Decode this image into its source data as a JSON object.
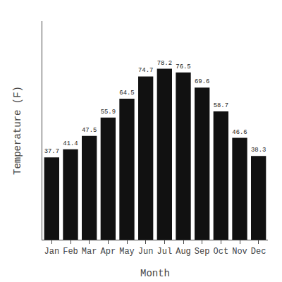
{
  "chart_data": {
    "type": "bar",
    "categories": [
      "Jan",
      "Feb",
      "Mar",
      "Apr",
      "May",
      "Jun",
      "Jul",
      "Aug",
      "Sep",
      "Oct",
      "Nov",
      "Dec"
    ],
    "values": [
      37.7,
      41.4,
      47.5,
      55.9,
      64.5,
      74.7,
      78.2,
      76.5,
      69.6,
      58.7,
      46.6,
      38.3
    ],
    "color": "#111111",
    "xlabel": "Month",
    "ylabel": "Temperature (F)",
    "ylim": [
      0,
      100
    ],
    "yticks": [],
    "grid": false,
    "data_labels": true,
    "tick_labels": "x"
  }
}
